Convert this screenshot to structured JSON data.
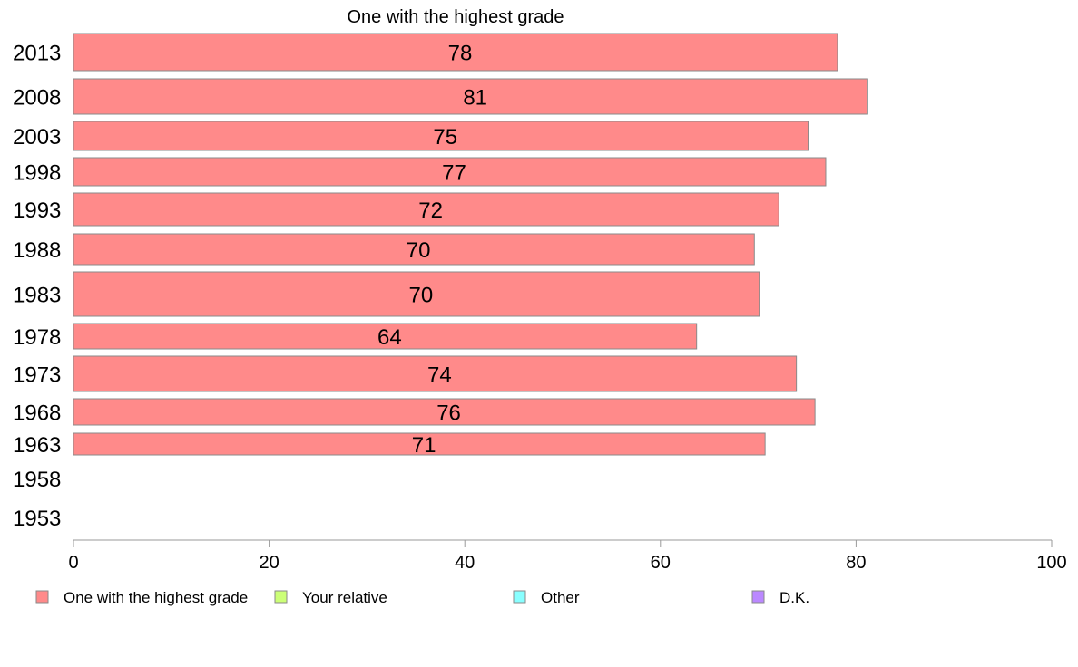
{
  "chart_data": {
    "type": "bar",
    "orientation": "horizontal",
    "title": "One with the highest grade",
    "categories": [
      "2013",
      "2008",
      "2003",
      "1998",
      "1993",
      "1988",
      "1983",
      "1978",
      "1973",
      "1968",
      "1963",
      "1958",
      "1953"
    ],
    "series": [
      {
        "name": "One with the highest grade",
        "color": "#ff8a8a",
        "values": [
          78,
          81,
          75,
          77,
          72,
          70,
          70,
          64,
          74,
          76,
          71,
          null,
          null
        ],
        "precise_values": [
          78.1,
          81.2,
          75.1,
          76.9,
          72.1,
          69.6,
          70.1,
          63.7,
          73.9,
          75.8,
          70.7,
          null,
          null
        ]
      }
    ],
    "xlim": [
      0,
      100
    ],
    "xticks": [
      0,
      20,
      40,
      60,
      80,
      100
    ],
    "xlabel": "",
    "ylabel": "",
    "grid": false,
    "legend": {
      "placement": "bottom",
      "entries": [
        {
          "label": "One with the highest grade",
          "color": "#ff8a8a"
        },
        {
          "label": "Your relative",
          "color": "#ccff77"
        },
        {
          "label": "Other",
          "color": "#88ffff"
        },
        {
          "label": "D.K.",
          "color": "#bb88ff"
        }
      ]
    }
  }
}
